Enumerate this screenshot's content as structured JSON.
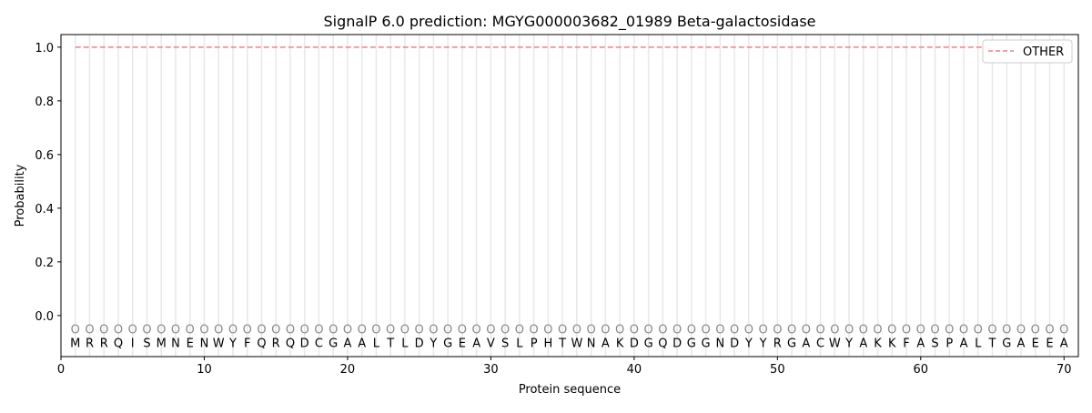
{
  "chart_data": {
    "type": "line",
    "title": "SignalP 6.0 prediction: MGYG000003682_01989 Beta-galactosidase",
    "xlabel": "Protein sequence",
    "ylabel": "Probability",
    "xlim": [
      0,
      71
    ],
    "ylim": [
      -0.153,
      1.047
    ],
    "xticks": [
      0,
      10,
      20,
      30,
      40,
      50,
      60,
      70
    ],
    "yticks": [
      0.0,
      0.2,
      0.4,
      0.6,
      0.8,
      1.0
    ],
    "ytick_labels": [
      "0.0",
      "0.2",
      "0.4",
      "0.6",
      "0.8",
      "1.0"
    ],
    "grid": "vertical lines at each residue",
    "legend_position": "top-right",
    "sequence": "MRRQISMNENWYFQRQDCGAALTLDYGEAVSLPHTWNAKDGQDGGNDYYRGACWYAKKFASPALTGAEEA",
    "predicted_labels": "OOOOOOOOOOOOOOOOOOOOOOOOOOOOOOOOOOOOOOOOOOOOOOOOOOOOOOOOOOOOOOOOOOOOOO",
    "series": [
      {
        "name": "OTHER",
        "color": "#f08080",
        "style": "dashed",
        "x_range": [
          1,
          70
        ],
        "value": 1.0
      }
    ]
  }
}
